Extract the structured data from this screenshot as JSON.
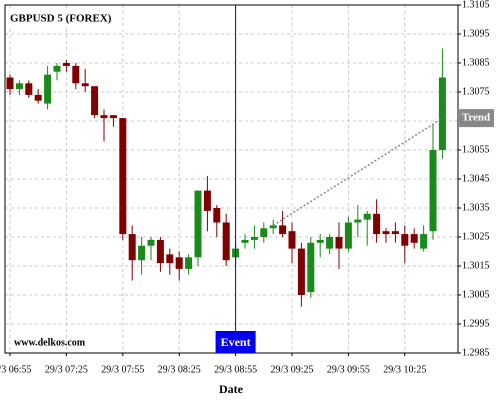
{
  "chart_data": {
    "type": "candlestick",
    "title": "GBPUSD 5 (FOREX)",
    "watermark": "www.delkos.com",
    "x_label": "Date",
    "categories": [
      "29/3 06:55",
      null,
      null,
      null,
      null,
      null,
      "29/3 07:25",
      null,
      null,
      null,
      null,
      null,
      "29/3 07:55",
      null,
      null,
      null,
      null,
      null,
      "29/3 08:25",
      null,
      null,
      null,
      null,
      null,
      "29/3 08:55",
      null,
      null,
      null,
      null,
      null,
      "29/3 09:25",
      null,
      null,
      null,
      null,
      null,
      "29/3 09:55",
      null,
      null,
      null,
      null,
      null,
      "29/3 10:25",
      null,
      null,
      null,
      null
    ],
    "open": [
      1.308,
      1.3076,
      1.3078,
      1.3074,
      1.3071,
      1.3082,
      1.3085,
      1.3084,
      1.3078,
      1.3077,
      1.3067,
      1.3067,
      1.3066,
      1.3026,
      1.3017,
      1.3022,
      1.3024,
      1.3019,
      1.3018,
      1.3014,
      1.3018,
      1.3041,
      1.3035,
      1.303,
      1.3018,
      1.3023,
      1.3024,
      1.3025,
      1.3028,
      1.3029,
      1.3027,
      1.3021,
      1.3006,
      1.3023,
      1.3021,
      1.3025,
      1.3021,
      1.303,
      1.3031,
      1.3033,
      1.3027,
      1.3027,
      1.3026,
      1.3026,
      1.3021,
      1.3027,
      1.3055
    ],
    "high": [
      1.3081,
      1.3079,
      1.3079,
      1.3076,
      1.3084,
      1.3085,
      1.3086,
      1.3085,
      1.3083,
      1.3077,
      1.3069,
      1.3067,
      1.3066,
      1.3029,
      1.3025,
      1.3025,
      1.3025,
      1.3021,
      1.302,
      1.3019,
      1.3041,
      1.3046,
      1.3036,
      1.3033,
      1.3023,
      1.3026,
      1.3029,
      1.303,
      1.3031,
      1.3034,
      1.303,
      1.3023,
      1.3025,
      1.3026,
      1.3026,
      1.303,
      1.3032,
      1.3036,
      1.3034,
      1.3038,
      1.3028,
      1.303,
      1.3029,
      1.3028,
      1.3029,
      1.3064,
      1.309
    ],
    "low": [
      1.3074,
      1.3074,
      1.3073,
      1.3071,
      1.3069,
      1.3079,
      1.3082,
      1.3076,
      1.3075,
      1.3066,
      1.3058,
      1.3063,
      1.3024,
      1.301,
      1.3012,
      1.3017,
      1.3013,
      1.3012,
      1.301,
      1.3012,
      1.3015,
      1.3027,
      1.3025,
      1.3015,
      1.3015,
      1.3021,
      1.3021,
      1.3023,
      1.3026,
      1.3025,
      1.3016,
      1.3001,
      1.3004,
      1.3018,
      1.3019,
      1.3014,
      1.302,
      1.3025,
      1.3022,
      1.3023,
      1.3023,
      1.3023,
      1.3016,
      1.3021,
      1.302,
      1.3024,
      1.3052
    ],
    "close": [
      1.3076,
      1.3078,
      1.3074,
      1.3072,
      1.3081,
      1.3084,
      1.3084,
      1.3078,
      1.3077,
      1.3067,
      1.3066,
      1.3066,
      1.3026,
      1.3017,
      1.3022,
      1.3024,
      1.3016,
      1.3016,
      1.3014,
      1.3018,
      1.3041,
      1.3034,
      1.303,
      1.3017,
      1.3021,
      1.3024,
      1.3025,
      1.3028,
      1.3029,
      1.3026,
      1.3021,
      1.3005,
      1.3023,
      1.3024,
      1.3025,
      1.3021,
      1.303,
      1.3031,
      1.3033,
      1.3026,
      1.3026,
      1.3026,
      1.3022,
      1.3023,
      1.3026,
      1.3055,
      1.308
    ],
    "up_color": "#1a8a1a",
    "down_color": "#800000",
    "ylim": [
      1.2985,
      1.3105
    ],
    "yticks": [
      1.2985,
      1.2995,
      1.3005,
      1.3015,
      1.3025,
      1.3035,
      1.3045,
      1.3055,
      1.3065,
      1.3075,
      1.3085,
      1.3095,
      1.3105
    ],
    "grid": true,
    "event": {
      "label": "Event",
      "x": "29/3 08:55",
      "color": "#0000ee"
    },
    "trend": {
      "label": "Trend",
      "color": "#888888",
      "values": [
        null,
        null,
        null,
        null,
        null,
        null,
        null,
        null,
        null,
        null,
        null,
        null,
        null,
        null,
        null,
        null,
        null,
        null,
        null,
        null,
        null,
        null,
        null,
        null,
        null,
        null,
        null,
        null,
        1.3029,
        1.30311,
        1.30331,
        1.30352,
        1.30372,
        1.30393,
        1.30413,
        1.30434,
        1.30454,
        1.30475,
        1.30495,
        1.30516,
        1.30536,
        1.30557,
        1.30577,
        1.30598,
        1.30618,
        1.30639,
        1.3066
      ]
    }
  }
}
